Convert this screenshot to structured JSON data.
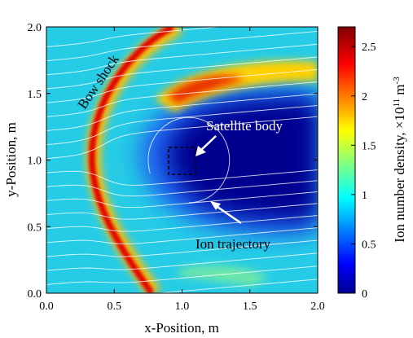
{
  "chart_data": {
    "type": "heatmap",
    "title": "",
    "xlabel": "x-Position, m",
    "ylabel": "y-Position, m",
    "xlim": [
      0.0,
      2.0
    ],
    "ylim": [
      0.0,
      2.0
    ],
    "x_ticks": [
      "0.0",
      "0.5",
      "1.0",
      "1.5",
      "2.0"
    ],
    "y_ticks": [
      "0.0",
      "0.5",
      "1.0",
      "1.5",
      "2.0"
    ],
    "colorbar": {
      "label": "Ion number density, ×10",
      "label_exp": "11",
      "label_unit": " m",
      "label_unit_exp": "-3",
      "range": [
        0,
        2.7
      ],
      "ticks": [
        "0",
        "0.5",
        "1",
        "1.5",
        "2",
        "2.5"
      ],
      "colormap": "jet"
    },
    "field": {
      "freestream_density": 1.0,
      "bow_shock_peak_density": 2.6,
      "wake_density": 0.0,
      "compression_lobe_peak_density": 2.4,
      "bow_shock_nose": [
        0.35,
        1.0
      ]
    },
    "satellite_box": {
      "x": [
        0.9,
        1.1
      ],
      "y": [
        0.9,
        1.1
      ]
    },
    "annotations": [
      {
        "text": "Bow shock",
        "color": "#000000"
      },
      {
        "text": "Satellite body",
        "color": "#ffffff"
      },
      {
        "text": "Ion trajectory",
        "color": "#000000"
      }
    ]
  }
}
